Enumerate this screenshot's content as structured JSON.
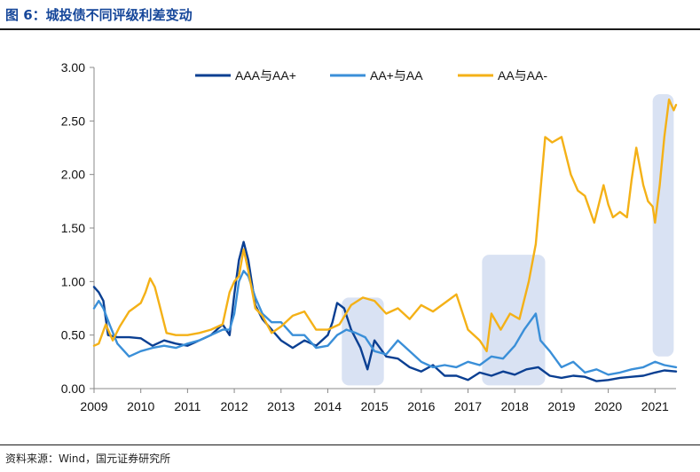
{
  "figure": {
    "title": "图 6：城投债不同评级利差变动",
    "source": "资料来源：Wind，国元证券研究所"
  },
  "colors": {
    "title": "#16479a",
    "shade": "#d9e2f3",
    "series": [
      "#0a3f92",
      "#3a8fd8",
      "#f4b117"
    ]
  },
  "chart_data": {
    "type": "line",
    "title": "",
    "xlabel": "",
    "ylabel": "",
    "xlim": [
      2009.0,
      2021.45
    ],
    "ylim": [
      0,
      3.0
    ],
    "yticks": [
      "0.00",
      "0.50",
      "1.00",
      "1.50",
      "2.00",
      "2.50",
      "3.00"
    ],
    "xticks": [
      "2009",
      "2010",
      "2011",
      "2012",
      "2013",
      "2014",
      "2015",
      "2016",
      "2017",
      "2018",
      "2019",
      "2020",
      "2021"
    ],
    "grid": false,
    "legend_position": "top",
    "shaded_periods": [
      [
        2014.3,
        2015.2
      ],
      [
        2017.3,
        2018.65
      ],
      [
        2020.95,
        2021.4
      ]
    ],
    "series": [
      {
        "name": "AAA与AA+",
        "x": [
          2009.0,
          2009.1,
          2009.2,
          2009.3,
          2009.5,
          2009.75,
          2010.0,
          2010.25,
          2010.5,
          2010.75,
          2011.0,
          2011.25,
          2011.5,
          2011.75,
          2011.9,
          2012.0,
          2012.1,
          2012.2,
          2012.3,
          2012.45,
          2012.6,
          2012.8,
          2013.0,
          2013.25,
          2013.5,
          2013.75,
          2014.0,
          2014.1,
          2014.2,
          2014.35,
          2014.5,
          2014.7,
          2014.85,
          2015.0,
          2015.25,
          2015.5,
          2015.75,
          2016.0,
          2016.25,
          2016.5,
          2016.75,
          2017.0,
          2017.25,
          2017.5,
          2017.75,
          2018.0,
          2018.25,
          2018.5,
          2018.75,
          2019.0,
          2019.25,
          2019.5,
          2019.75,
          2020.0,
          2020.25,
          2020.5,
          2020.75,
          2021.0,
          2021.2,
          2021.45
        ],
        "values": [
          0.95,
          0.9,
          0.82,
          0.5,
          0.48,
          0.48,
          0.47,
          0.4,
          0.45,
          0.42,
          0.4,
          0.45,
          0.5,
          0.6,
          0.5,
          0.88,
          1.2,
          1.37,
          1.2,
          0.78,
          0.65,
          0.55,
          0.45,
          0.38,
          0.45,
          0.4,
          0.5,
          0.62,
          0.8,
          0.75,
          0.55,
          0.38,
          0.18,
          0.45,
          0.3,
          0.28,
          0.2,
          0.16,
          0.22,
          0.12,
          0.12,
          0.08,
          0.15,
          0.12,
          0.16,
          0.13,
          0.18,
          0.2,
          0.12,
          0.1,
          0.12,
          0.11,
          0.07,
          0.08,
          0.1,
          0.11,
          0.12,
          0.15,
          0.17,
          0.16
        ]
      },
      {
        "name": "AA+与AA",
        "x": [
          2009.0,
          2009.1,
          2009.2,
          2009.35,
          2009.5,
          2009.75,
          2010.0,
          2010.25,
          2010.5,
          2010.75,
          2011.0,
          2011.25,
          2011.5,
          2011.75,
          2011.9,
          2012.0,
          2012.1,
          2012.2,
          2012.3,
          2012.45,
          2012.6,
          2012.8,
          2013.0,
          2013.25,
          2013.5,
          2013.75,
          2014.0,
          2014.2,
          2014.4,
          2014.6,
          2014.8,
          2015.0,
          2015.25,
          2015.5,
          2015.75,
          2016.0,
          2016.25,
          2016.5,
          2016.75,
          2017.0,
          2017.25,
          2017.5,
          2017.75,
          2018.0,
          2018.2,
          2018.45,
          2018.55,
          2018.75,
          2019.0,
          2019.25,
          2019.5,
          2019.75,
          2020.0,
          2020.25,
          2020.5,
          2020.75,
          2021.0,
          2021.2,
          2021.45
        ],
        "values": [
          0.75,
          0.82,
          0.75,
          0.58,
          0.42,
          0.3,
          0.35,
          0.38,
          0.4,
          0.38,
          0.42,
          0.45,
          0.5,
          0.55,
          0.55,
          0.7,
          1.0,
          1.1,
          1.05,
          0.85,
          0.7,
          0.62,
          0.62,
          0.5,
          0.5,
          0.38,
          0.4,
          0.5,
          0.55,
          0.52,
          0.48,
          0.35,
          0.32,
          0.45,
          0.35,
          0.25,
          0.2,
          0.22,
          0.2,
          0.25,
          0.22,
          0.3,
          0.28,
          0.4,
          0.55,
          0.7,
          0.45,
          0.35,
          0.2,
          0.25,
          0.15,
          0.18,
          0.13,
          0.15,
          0.18,
          0.2,
          0.25,
          0.22,
          0.2
        ]
      },
      {
        "name": "AA与AA-",
        "x": [
          2009.0,
          2009.1,
          2009.25,
          2009.4,
          2009.55,
          2009.75,
          2010.0,
          2010.1,
          2010.2,
          2010.3,
          2010.4,
          2010.55,
          2010.75,
          2011.0,
          2011.25,
          2011.5,
          2011.75,
          2011.9,
          2012.0,
          2012.1,
          2012.2,
          2012.3,
          2012.45,
          2012.6,
          2012.8,
          2013.0,
          2013.25,
          2013.5,
          2013.75,
          2014.0,
          2014.25,
          2014.5,
          2014.75,
          2015.0,
          2015.25,
          2015.5,
          2015.75,
          2016.0,
          2016.25,
          2016.5,
          2016.75,
          2016.85,
          2017.0,
          2017.25,
          2017.4,
          2017.5,
          2017.7,
          2017.9,
          2018.1,
          2018.3,
          2018.45,
          2018.55,
          2018.65,
          2018.8,
          2019.0,
          2019.2,
          2019.35,
          2019.5,
          2019.7,
          2019.9,
          2020.0,
          2020.1,
          2020.25,
          2020.4,
          2020.5,
          2020.6,
          2020.75,
          2020.85,
          2020.95,
          2021.0,
          2021.1,
          2021.2,
          2021.3,
          2021.4,
          2021.45
        ],
        "values": [
          0.4,
          0.42,
          0.6,
          0.45,
          0.58,
          0.72,
          0.8,
          0.9,
          1.03,
          0.95,
          0.78,
          0.52,
          0.5,
          0.5,
          0.52,
          0.55,
          0.6,
          0.9,
          1.0,
          1.05,
          1.3,
          1.1,
          0.75,
          0.68,
          0.52,
          0.58,
          0.68,
          0.72,
          0.55,
          0.55,
          0.6,
          0.78,
          0.85,
          0.82,
          0.7,
          0.75,
          0.65,
          0.78,
          0.72,
          0.8,
          0.88,
          0.75,
          0.55,
          0.45,
          0.35,
          0.7,
          0.55,
          0.7,
          0.65,
          1.0,
          1.35,
          1.85,
          2.35,
          2.3,
          2.35,
          2.0,
          1.85,
          1.8,
          1.55,
          1.9,
          1.72,
          1.6,
          1.65,
          1.6,
          1.95,
          2.25,
          1.9,
          1.75,
          1.7,
          1.55,
          1.9,
          2.35,
          2.7,
          2.6,
          2.65
        ]
      }
    ]
  }
}
